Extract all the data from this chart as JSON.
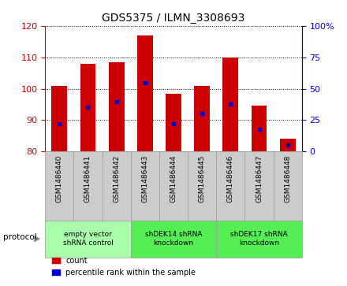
{
  "title": "GDS5375 / ILMN_3308693",
  "samples": [
    "GSM1486440",
    "GSM1486441",
    "GSM1486442",
    "GSM1486443",
    "GSM1486444",
    "GSM1486445",
    "GSM1486446",
    "GSM1486447",
    "GSM1486448"
  ],
  "count_values": [
    101,
    108,
    108.5,
    117,
    98.5,
    101,
    110,
    94.5,
    84
  ],
  "percentile_values": [
    22,
    35,
    40,
    55,
    22,
    30,
    38,
    18,
    5
  ],
  "ylim_left": [
    80,
    120
  ],
  "ylim_right": [
    0,
    100
  ],
  "yticks_left": [
    80,
    90,
    100,
    110,
    120
  ],
  "yticks_right": [
    0,
    25,
    50,
    75,
    100
  ],
  "bar_color": "#cc0000",
  "dot_color": "#0000cc",
  "groups": [
    {
      "label": "empty vector\nshRNA control",
      "start": 0,
      "end": 3,
      "color": "#aaffaa"
    },
    {
      "label": "shDEK14 shRNA\nknockdown",
      "start": 3,
      "end": 6,
      "color": "#55ee55"
    },
    {
      "label": "shDEK17 shRNA\nknockdown",
      "start": 6,
      "end": 9,
      "color": "#55ee55"
    }
  ],
  "protocol_label": "protocol",
  "legend_count_label": "count",
  "legend_percentile_label": "percentile rank within the sample",
  "axis_left_color": "#cc0000",
  "axis_right_color": "#0000cc",
  "grid_style": "dotted",
  "bar_width": 0.55,
  "bar_bottom": 80,
  "sample_box_color": "#cccccc",
  "sample_box_edgecolor": "#999999"
}
